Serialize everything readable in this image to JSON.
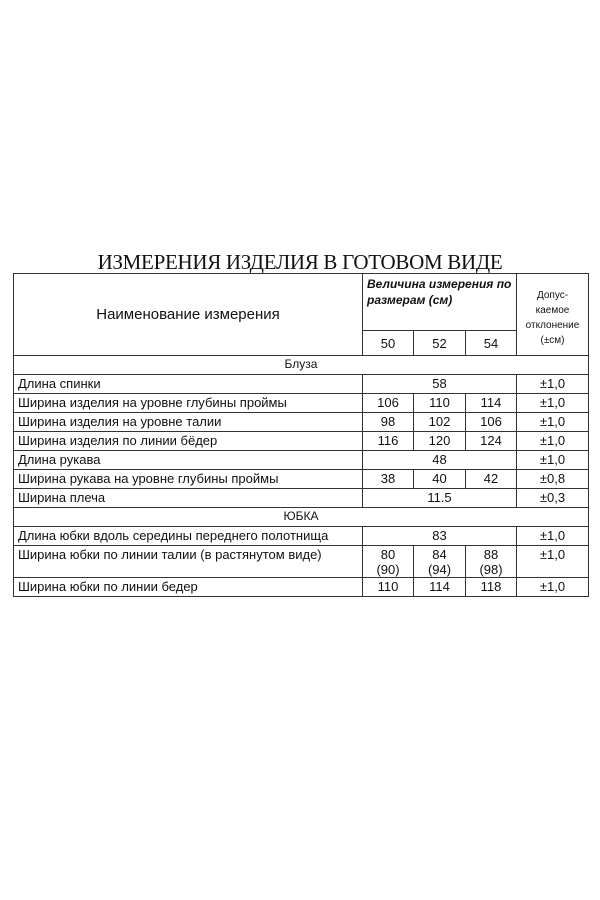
{
  "title": "ИЗМЕРЕНИЯ ИЗДЕЛИЯ В ГОТОВОМ ВИДЕ",
  "header": {
    "name": "Наименование измерения",
    "sizes_caption": "Величина измерения по размерам (см)",
    "tolerance": "Допус-каемое отклонение (±см)",
    "sizes": [
      "50",
      "52",
      "54"
    ]
  },
  "sections": [
    {
      "name": "Блуза",
      "rows": [
        {
          "name": "Длина спинки",
          "merged": "58",
          "tol": "±1,0"
        },
        {
          "name": "Ширина изделия на уровне глубины проймы",
          "values": [
            "106",
            "110",
            "114"
          ],
          "tol": "±1,0"
        },
        {
          "name": "Ширина изделия на уровне талии",
          "values": [
            "98",
            "102",
            "106"
          ],
          "tol": "±1,0"
        },
        {
          "name": "Ширина изделия по линии бёдер",
          "values": [
            "116",
            "120",
            "124"
          ],
          "tol": "±1,0"
        },
        {
          "name": "Длина рукава",
          "merged": "48",
          "tol": "±1,0"
        },
        {
          "name": "Ширина рукава на уровне глубины проймы",
          "values": [
            "38",
            "40",
            "42"
          ],
          "tol": "±0,8"
        },
        {
          "name": "Ширина плеча",
          "merged": "11.5",
          "tol": "±0,3"
        }
      ]
    },
    {
      "name": "ЮБКА",
      "rows": [
        {
          "name": "Длина юбки  вдоль середины переднего полотнища",
          "merged": "83",
          "tol": "±1,0"
        },
        {
          "name": "Ширина юбки по линии талии (в растянутом виде)",
          "values": [
            "80\n(90)",
            "84\n(94)",
            "88\n(98)"
          ],
          "tol": "±1,0"
        },
        {
          "name": "Ширина юбки по линии бедер",
          "values": [
            "110",
            "114",
            "118"
          ],
          "tol": "±1,0"
        }
      ]
    }
  ]
}
